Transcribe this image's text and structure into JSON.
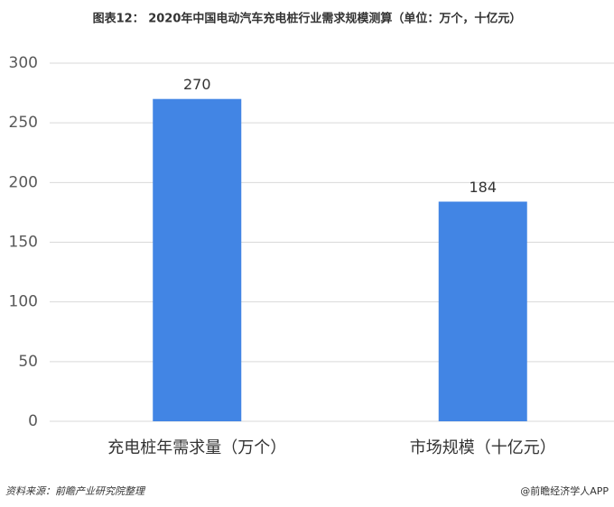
{
  "chart_data": {
    "type": "bar",
    "title": "图表12： 2020年中国电动汽车充电桩行业需求规模测算（单位：万个，十亿元）",
    "categories": [
      "充电桩年需求量（万个）",
      "市场规模（十亿元）"
    ],
    "values": [
      270,
      184
    ],
    "color": "#4285e4",
    "ylim": [
      0,
      300
    ],
    "yticks": [
      0,
      50,
      100,
      150,
      200,
      250,
      300
    ],
    "grid": true,
    "source": "资料来源：前瞻产业研究院整理",
    "credit": "@前瞻经济学人APP"
  }
}
